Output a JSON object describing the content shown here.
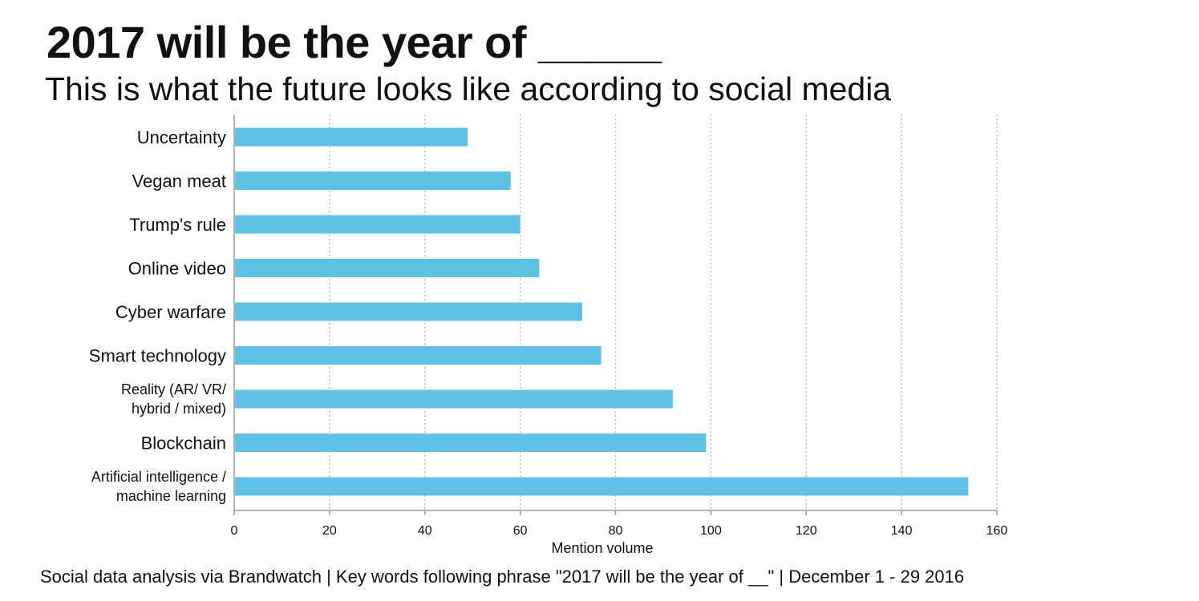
{
  "title": "2017 will be the year of _____",
  "subtitle": "This is what the future looks like according to social media",
  "footnote": "Social data analysis via Brandwatch | Key words following phrase \"2017 will be the year of __\" | December 1 - 29 2016",
  "colors": {
    "bar": "#5ec2e6",
    "grid": "#bbbbbb",
    "axis": "#999999",
    "text": "#111111"
  },
  "chart_data": {
    "type": "bar",
    "orientation": "horizontal",
    "categories": [
      [
        "Uncertainty"
      ],
      [
        "Vegan meat"
      ],
      [
        "Trump's rule"
      ],
      [
        "Online video"
      ],
      [
        "Cyber warfare"
      ],
      [
        "Smart technology"
      ],
      [
        "Reality (AR/ VR/",
        "hybrid / mixed)"
      ],
      [
        "Blockchain"
      ],
      [
        "Artificial intelligence /",
        "machine learning"
      ]
    ],
    "values": [
      49,
      58,
      60,
      64,
      73,
      77,
      92,
      99,
      154
    ],
    "xlabel": "Mention volume",
    "ylabel": "",
    "xlim": [
      0,
      160
    ],
    "xticks": [
      0,
      20,
      40,
      60,
      80,
      100,
      120,
      140,
      160
    ],
    "grid": "vertical dashed"
  }
}
